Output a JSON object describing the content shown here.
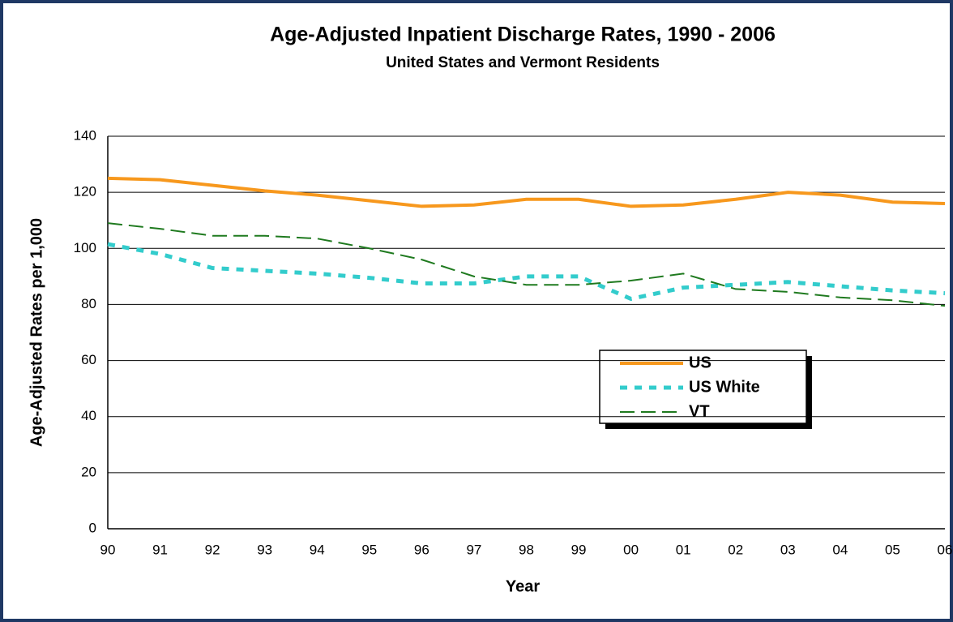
{
  "chart_data": {
    "type": "line",
    "title": "Age-Adjusted Inpatient Discharge Rates, 1990 - 2006",
    "subtitle": "United States and Vermont Residents",
    "x_label": "Year",
    "y_label": "Age-Adjusted Rates per 1,000",
    "categories": [
      "90",
      "91",
      "92",
      "93",
      "94",
      "95",
      "96",
      "97",
      "98",
      "99",
      "00",
      "01",
      "02",
      "03",
      "04",
      "05",
      "06"
    ],
    "series": [
      {
        "name": "US",
        "color": "#f7981d",
        "style": "solid",
        "values": [
          125,
          124.5,
          122.5,
          120.5,
          119,
          117,
          115,
          115.5,
          117.5,
          117.5,
          115,
          115.5,
          117.5,
          120,
          119,
          116.5,
          116
        ]
      },
      {
        "name": "US White",
        "color": "#33cccc",
        "style": "dotted",
        "values": [
          101.5,
          98,
          93,
          92,
          91,
          89.5,
          87.5,
          87.5,
          90,
          90,
          82,
          86,
          87,
          88,
          86.5,
          85,
          84
        ]
      },
      {
        "name": "VT",
        "color": "#1f7a1f",
        "style": "dashed",
        "values": [
          109,
          107,
          104.5,
          104.5,
          103.5,
          100,
          96,
          90,
          87,
          87,
          88.5,
          91,
          85.5,
          84.5,
          82.5,
          81.5,
          79.5
        ]
      }
    ],
    "ylim": [
      0,
      140
    ],
    "yticks": [
      0,
      20,
      40,
      60,
      80,
      100,
      120,
      140
    ],
    "grid": true
  }
}
